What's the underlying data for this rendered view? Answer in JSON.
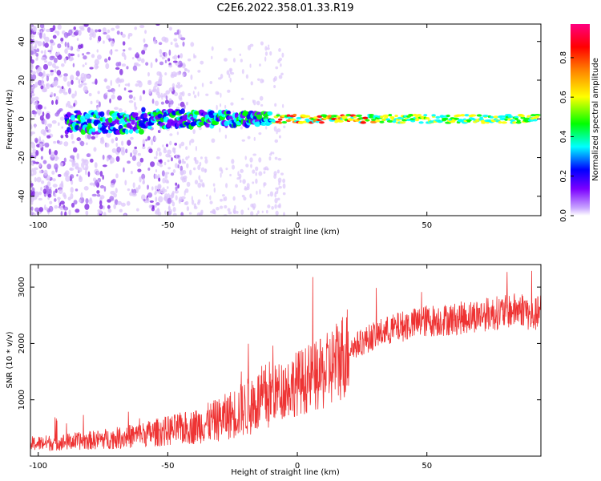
{
  "title": "C2E6.2022.358.01.33.R19",
  "chart_data": [
    {
      "type": "heatmap",
      "xlabel": "Height of straight line (km)",
      "ylabel": "Frequency (Hz)",
      "xlim": [
        -103,
        94
      ],
      "ylim": [
        -50,
        49
      ],
      "xticks": [
        -100,
        -50,
        0,
        50
      ],
      "yticks": [
        -40,
        -20,
        0,
        20,
        40
      ],
      "colorbar": {
        "label": "Normalized spectral amplitude",
        "range": [
          0,
          0.97
        ],
        "ticks": [
          "0.0",
          "0.2",
          "0.4",
          "0.6",
          "0.8"
        ],
        "colormap": [
          "#7b00ff",
          "#0000ff",
          "#00ffff",
          "#00ff00",
          "#ffff00",
          "#ff8000",
          "#ff0000",
          "#ff0080"
        ]
      },
      "carrier_frequency_hz": 0,
      "notes": "Broad scatter at low heights (-103 to -50 km), concentrated carrier line near 0 Hz; strongest (red) near 0 to 30 km, then green/yellow line to 94 km."
    },
    {
      "type": "line",
      "xlabel": "Height of straight line (km)",
      "ylabel": "SNR (10 * v/v)",
      "xlim": [
        -103,
        94
      ],
      "ylim": [
        0,
        3400
      ],
      "xticks": [
        -100,
        -50,
        0,
        50
      ],
      "yticks": [
        1000,
        2000,
        3000
      ],
      "color": "#ee3333",
      "trend": {
        "x": [
          -103,
          -90,
          -80,
          -70,
          -60,
          -50,
          -40,
          -30,
          -20,
          -10,
          0,
          10,
          20,
          30,
          40,
          50,
          60,
          70,
          80,
          88,
          90,
          94
        ],
        "y": [
          220,
          250,
          280,
          320,
          380,
          450,
          520,
          650,
          850,
          1100,
          1300,
          1450,
          1900,
          2150,
          2300,
          2400,
          2430,
          2500,
          2560,
          2620,
          2450,
          2580
        ]
      }
    }
  ]
}
